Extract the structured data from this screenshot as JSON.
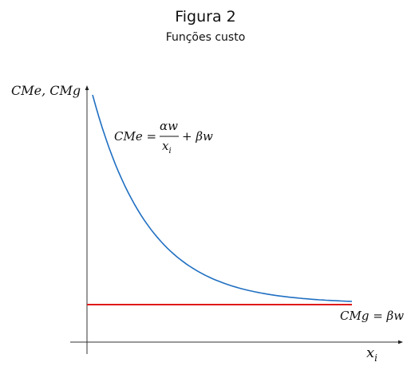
{
  "figure": {
    "title": "Figura 2",
    "subtitle": "Funções custo"
  },
  "chart_data": {
    "type": "line",
    "ylabel": "CMe, CMg",
    "xlabel": "xi",
    "grid": false,
    "legend": "none",
    "series": [
      {
        "name": "CMe",
        "label": {
          "lhs": "CMe =",
          "num": "αw",
          "den": "xi",
          "rest": "+ βw"
        },
        "color": "#1f6fc2",
        "relation": "αw/xi + βw"
      },
      {
        "name": "CMg",
        "label": "CMg = βw",
        "color": "#e0191b",
        "relation": "βw (constant)"
      }
    ]
  }
}
